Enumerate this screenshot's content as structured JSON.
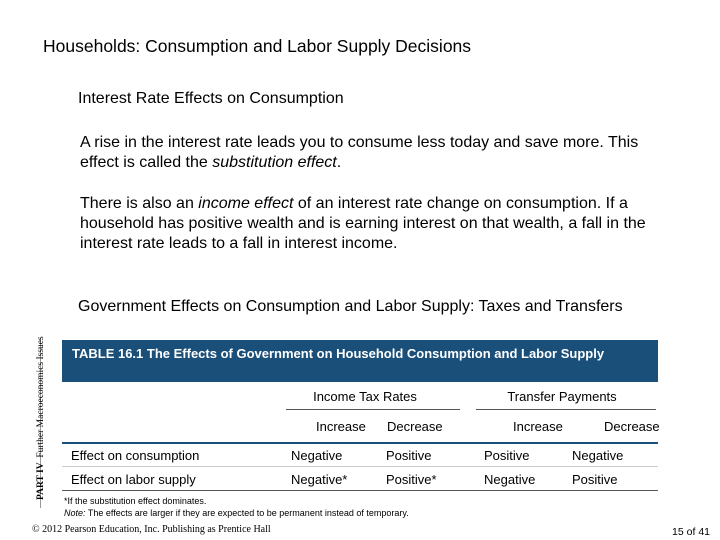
{
  "slide": {
    "title": "Households: Consumption and Labor Supply Decisions",
    "section1": "Interest Rate Effects on Consumption",
    "p1_part1": "A rise in the interest rate leads you to consume less today and save more. This effect is called the ",
    "p1_em": "substitution effect",
    "p1_part2": ".",
    "p2_part1": "There is also an ",
    "p2_em": "income effect",
    "p2_part2": " of an interest rate change on consumption. If a household has positive wealth and is earning interest on that wealth, a fall in the interest rate leads to a fall in interest income.",
    "section2": "Government Effects on Consumption and Labor Supply: Taxes and Transfers"
  },
  "side_label": {
    "part": "PART IV",
    "text": "Further Macroeconomics Issues"
  },
  "table": {
    "title": "TABLE 16.1  The Effects of Government on Household Consumption and Labor Supply",
    "group_income": "Income Tax Rates",
    "group_transfer": "Transfer Payments",
    "subheaders": [
      "Increase",
      "Decrease",
      "Increase",
      "Decrease"
    ],
    "rows": [
      {
        "label": "Effect on consumption",
        "values": [
          "Negative",
          "Positive",
          "Positive",
          "Negative"
        ]
      },
      {
        "label": "Effect on labor supply",
        "values": [
          "Negative*",
          "Positive*",
          "Negative",
          "Positive"
        ]
      }
    ],
    "footnote1": "*If the substitution effect dominates.",
    "footnote2_label": "Note:",
    "footnote2_text": " The effects are larger if they are expected to be permanent instead of temporary."
  },
  "footer": {
    "copyright": "© 2012 Pearson Education, Inc. Publishing as Prentice Hall",
    "page": "15 of 41"
  }
}
